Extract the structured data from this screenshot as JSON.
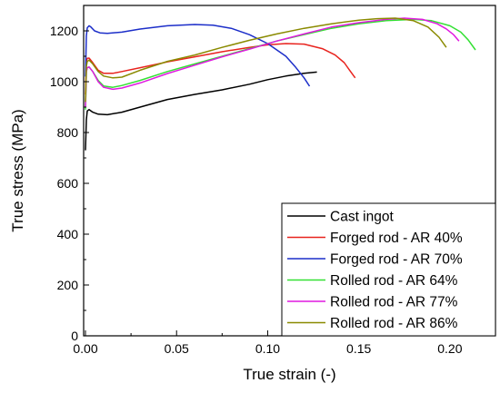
{
  "chart_data": {
    "type": "line",
    "title": "",
    "xlabel": "True strain (-)",
    "ylabel": "True stress (MPa)",
    "xlim": [
      -0.001,
      0.225
    ],
    "ylim": [
      0,
      1300
    ],
    "xticks": [
      0.0,
      0.05,
      0.1,
      0.15,
      0.2
    ],
    "xtick_labels": [
      "0.00",
      "0.05",
      "0.10",
      "0.15",
      "0.20"
    ],
    "yticks": [
      0,
      200,
      400,
      600,
      800,
      1000,
      1200
    ],
    "ytick_labels": [
      "0",
      "200",
      "400",
      "600",
      "800",
      "1000",
      "1200"
    ],
    "grid": false,
    "legend_position": "bottom-right",
    "series": [
      {
        "name": "Cast ingot",
        "color": "#000000",
        "x": [
          0.0,
          0.0005,
          0.001,
          0.002,
          0.004,
          0.007,
          0.012,
          0.02,
          0.03,
          0.045,
          0.06,
          0.075,
          0.09,
          0.1,
          0.11,
          0.12,
          0.127
        ],
        "y": [
          730,
          850,
          885,
          890,
          880,
          872,
          870,
          880,
          900,
          930,
          950,
          968,
          990,
          1008,
          1022,
          1033,
          1038
        ]
      },
      {
        "name": "Forged rod - AR 40%",
        "color": "#e8231e",
        "x": [
          0.0,
          0.0005,
          0.001,
          0.002,
          0.004,
          0.007,
          0.01,
          0.015,
          0.02,
          0.03,
          0.045,
          0.06,
          0.075,
          0.09,
          0.1,
          0.11,
          0.12,
          0.13,
          0.137,
          0.142,
          0.145,
          0.148
        ],
        "y": [
          950,
          1080,
          1092,
          1093,
          1075,
          1045,
          1033,
          1033,
          1040,
          1055,
          1078,
          1098,
          1118,
          1135,
          1145,
          1150,
          1148,
          1130,
          1105,
          1075,
          1045,
          1015
        ]
      },
      {
        "name": "Forged rod - AR 70%",
        "color": "#1c2ec9",
        "x": [
          0.0,
          0.0005,
          0.001,
          0.002,
          0.003,
          0.005,
          0.008,
          0.012,
          0.02,
          0.03,
          0.045,
          0.06,
          0.07,
          0.08,
          0.09,
          0.1,
          0.11,
          0.115,
          0.12,
          0.123
        ],
        "y": [
          1020,
          1180,
          1212,
          1220,
          1215,
          1200,
          1192,
          1190,
          1195,
          1207,
          1220,
          1225,
          1222,
          1210,
          1185,
          1150,
          1100,
          1060,
          1015,
          982
        ]
      },
      {
        "name": "Rolled rod - AR 64%",
        "color": "#33e033",
        "x": [
          0.0,
          0.0005,
          0.001,
          0.002,
          0.004,
          0.007,
          0.01,
          0.015,
          0.02,
          0.03,
          0.045,
          0.06,
          0.075,
          0.09,
          0.105,
          0.12,
          0.135,
          0.15,
          0.165,
          0.18,
          0.19,
          0.2,
          0.206,
          0.21,
          0.214
        ],
        "y": [
          890,
          1040,
          1055,
          1058,
          1040,
          1005,
          983,
          978,
          985,
          1005,
          1040,
          1070,
          1100,
          1130,
          1160,
          1185,
          1210,
          1228,
          1240,
          1245,
          1240,
          1220,
          1195,
          1165,
          1125
        ]
      },
      {
        "name": "Rolled rod - AR 77%",
        "color": "#e019e0",
        "x": [
          0.0,
          0.0005,
          0.001,
          0.002,
          0.004,
          0.007,
          0.01,
          0.015,
          0.02,
          0.03,
          0.045,
          0.06,
          0.075,
          0.09,
          0.105,
          0.12,
          0.135,
          0.15,
          0.165,
          0.175,
          0.185,
          0.193,
          0.198,
          0.202,
          0.205
        ],
        "y": [
          900,
          1040,
          1055,
          1058,
          1040,
          1000,
          978,
          970,
          975,
          995,
          1032,
          1065,
          1098,
          1128,
          1160,
          1188,
          1215,
          1232,
          1245,
          1250,
          1245,
          1228,
          1208,
          1185,
          1160
        ]
      },
      {
        "name": "Rolled rod - AR 86%",
        "color": "#8a8a00",
        "x": [
          0.0,
          0.0005,
          0.001,
          0.002,
          0.004,
          0.007,
          0.01,
          0.015,
          0.02,
          0.03,
          0.045,
          0.06,
          0.075,
          0.09,
          0.105,
          0.12,
          0.135,
          0.15,
          0.16,
          0.17,
          0.18,
          0.188,
          0.194,
          0.198
        ],
        "y": [
          920,
          1060,
          1080,
          1085,
          1070,
          1040,
          1022,
          1015,
          1018,
          1045,
          1080,
          1105,
          1135,
          1163,
          1188,
          1210,
          1228,
          1242,
          1248,
          1250,
          1240,
          1215,
          1175,
          1135
        ]
      }
    ]
  }
}
